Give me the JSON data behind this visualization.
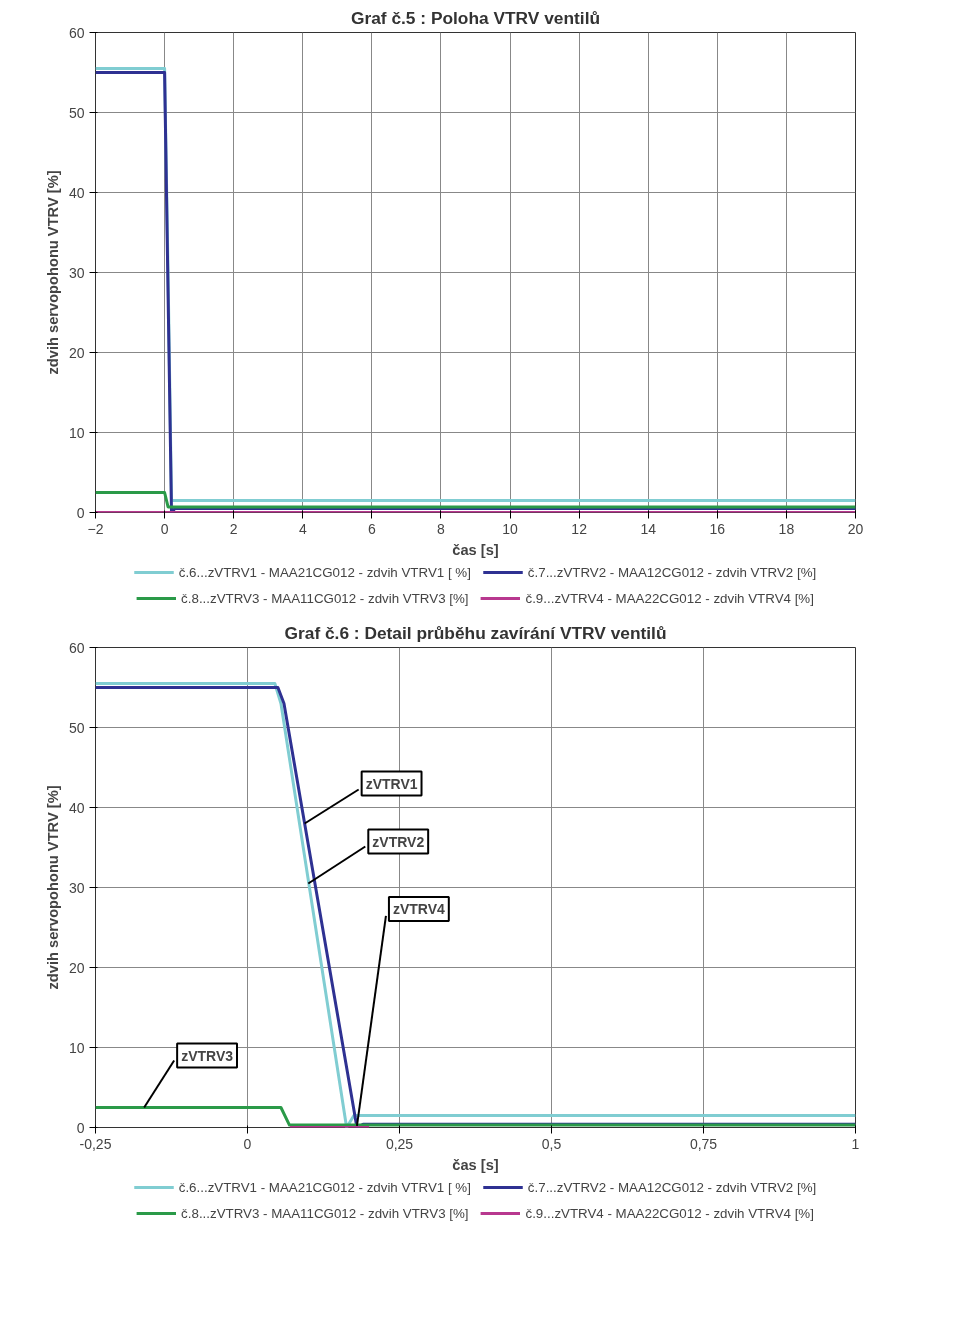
{
  "chart_data": [
    {
      "type": "line",
      "title": "Graf č.5 : Poloha VTRV ventilů",
      "xlabel": "čas [s]",
      "ylabel": "zdvih servopohonu VTRV [%]",
      "xlim": [
        -2,
        20
      ],
      "ylim": [
        0,
        60
      ],
      "xticks": [
        -2,
        0,
        2,
        4,
        6,
        8,
        10,
        12,
        14,
        16,
        18,
        20
      ],
      "yticks": [
        0,
        10,
        20,
        30,
        40,
        50,
        60
      ],
      "grid": true,
      "legend": "bottom",
      "line_style": "solid",
      "marker": "none",
      "series": [
        {
          "name": "č.6...zVTRV1 - MAA21CG012 - zdvih VTRV1 [ %]",
          "color": "#80cdd2",
          "x": [
            -2,
            0,
            0.1,
            0.2,
            20
          ],
          "values": [
            55.5,
            55.5,
            30,
            1.5,
            1.5
          ]
        },
        {
          "name": "č.7...zVTRV2 - MAA12CG012 - zdvih VTRV2 [%]",
          "color": "#2e3192",
          "x": [
            -2,
            0,
            0.2,
            0.3,
            20
          ],
          "values": [
            55,
            55,
            0,
            0.5,
            0.5
          ]
        },
        {
          "name": "č.8...zVTRV3 - MAA11CG012 - zdvih VTRV3 [%]",
          "color": "#2a9a48",
          "x": [
            -2,
            0,
            0.1,
            20
          ],
          "values": [
            2.5,
            2.5,
            0.7,
            0.7
          ]
        },
        {
          "name": "č.9...zVTRV4 - MAA22CG012 - zdvih VTRV4 [%]",
          "color": "#b8388f",
          "x": [
            -2,
            20
          ],
          "values": [
            0,
            0
          ]
        }
      ]
    },
    {
      "type": "line",
      "title": "Graf č.6 : Detail průběhu zavírání VTRV ventilů",
      "xlabel": "čas [s]",
      "ylabel": "zdvih servopohonu VTRV [%]",
      "xlim": [
        -0.25,
        1
      ],
      "ylim": [
        0,
        60
      ],
      "xticks": [
        {
          "value": -0.25,
          "label": "-0,25"
        },
        0,
        {
          "value": 0.25,
          "label": "0,25"
        },
        {
          "value": 0.5,
          "label": "0,5"
        },
        {
          "value": 0.75,
          "label": "0,75"
        },
        1
      ],
      "yticks": [
        0,
        10,
        20,
        30,
        40,
        50,
        60
      ],
      "grid": true,
      "legend": "bottom",
      "line_style": "solid",
      "marker": "none",
      "annotations": [
        {
          "text": "zVTRV1",
          "x": 0.094,
          "y": 38
        },
        {
          "text": "zVTRV2",
          "x": 0.1,
          "y": 30.5
        },
        {
          "text": "zVTRV4",
          "x": 0.18,
          "y": 0.2
        },
        {
          "text": "zVTRV3",
          "x": -0.17,
          "y": 2.5
        }
      ],
      "series": [
        {
          "name": "č.6...zVTRV1 - MAA21CG012 - zdvih VTRV1 [ %]",
          "color": "#80cdd2",
          "x": [
            -0.25,
            0.045,
            0.055,
            0.163,
            0.175,
            1
          ],
          "values": [
            55.5,
            55.5,
            53,
            0,
            1.5,
            1.5
          ]
        },
        {
          "name": "č.7...zVTRV2 - MAA12CG012 - zdvih VTRV2 [%]",
          "color": "#2e3192",
          "x": [
            -0.25,
            0.05,
            0.06,
            0.18,
            0.19,
            1
          ],
          "values": [
            55,
            55,
            53,
            0,
            0.4,
            0.4
          ]
        },
        {
          "name": "č.8...zVTRV3 - MAA11CG012 - zdvih VTRV3 [%]",
          "color": "#2a9a48",
          "x": [
            -0.25,
            0.055,
            0.069,
            1
          ],
          "values": [
            2.5,
            2.5,
            0.3,
            0.3
          ]
        },
        {
          "name": "č.9...zVTRV4 - MAA22CG012 - zdvih VTRV4 [%]",
          "color": "#b8388f",
          "x": [
            0.07,
            0.2
          ],
          "values": [
            0,
            0
          ]
        }
      ]
    }
  ]
}
